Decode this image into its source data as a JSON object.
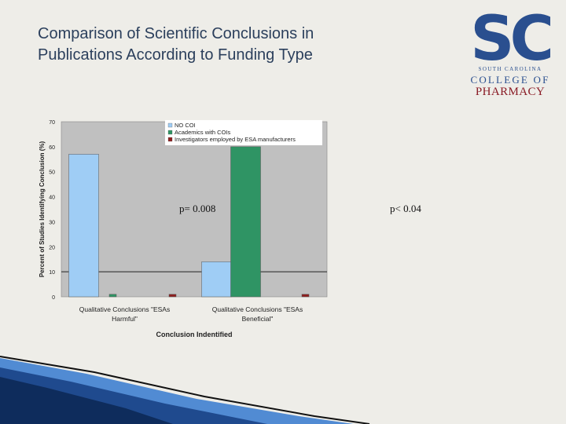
{
  "slide": {
    "title_line1": "Comparison of Scientific Conclusions in",
    "title_line2": "Publications According to Funding Type",
    "p_value_1": "p= 0.008",
    "p_value_2": "p< 0.04"
  },
  "logo": {
    "mark": "SC",
    "line1": "SOUTH CAROLINA",
    "line2": "COLLEGE OF",
    "line3": "PHARMACY"
  },
  "colors": {
    "title": "#2b3f5c",
    "background": "#eeede8",
    "plot_area": "#c0c0c0",
    "series_no_coi": "#9fcdf5",
    "series_academics": "#2f9464",
    "series_investigators": "#8e1f1f",
    "logo_blue": "#2a4f8f",
    "logo_red": "#8a1c26"
  },
  "chart_data": {
    "type": "bar",
    "title": "",
    "xlabel": "Conclusion Indentified",
    "ylabel": "Percent of Studies Identifying Conclusion (%)",
    "ylim": [
      0,
      70
    ],
    "yticks": [
      0,
      10,
      20,
      30,
      40,
      50,
      60,
      70
    ],
    "reference_line": 10,
    "categories": [
      [
        "Qualitative Conclusions \"ESAs",
        "Harmful\""
      ],
      [
        "Qualitative Conclusions \"ESAs",
        "Beneficial\""
      ]
    ],
    "series": [
      {
        "name": "NO COI",
        "values": [
          57,
          14
        ]
      },
      {
        "name": "Academics with COIs",
        "values": [
          1,
          60
        ]
      },
      {
        "name": "Investigators employed by ESA manufacturers",
        "values": [
          1,
          1
        ]
      }
    ],
    "legend_position": "top-right"
  }
}
